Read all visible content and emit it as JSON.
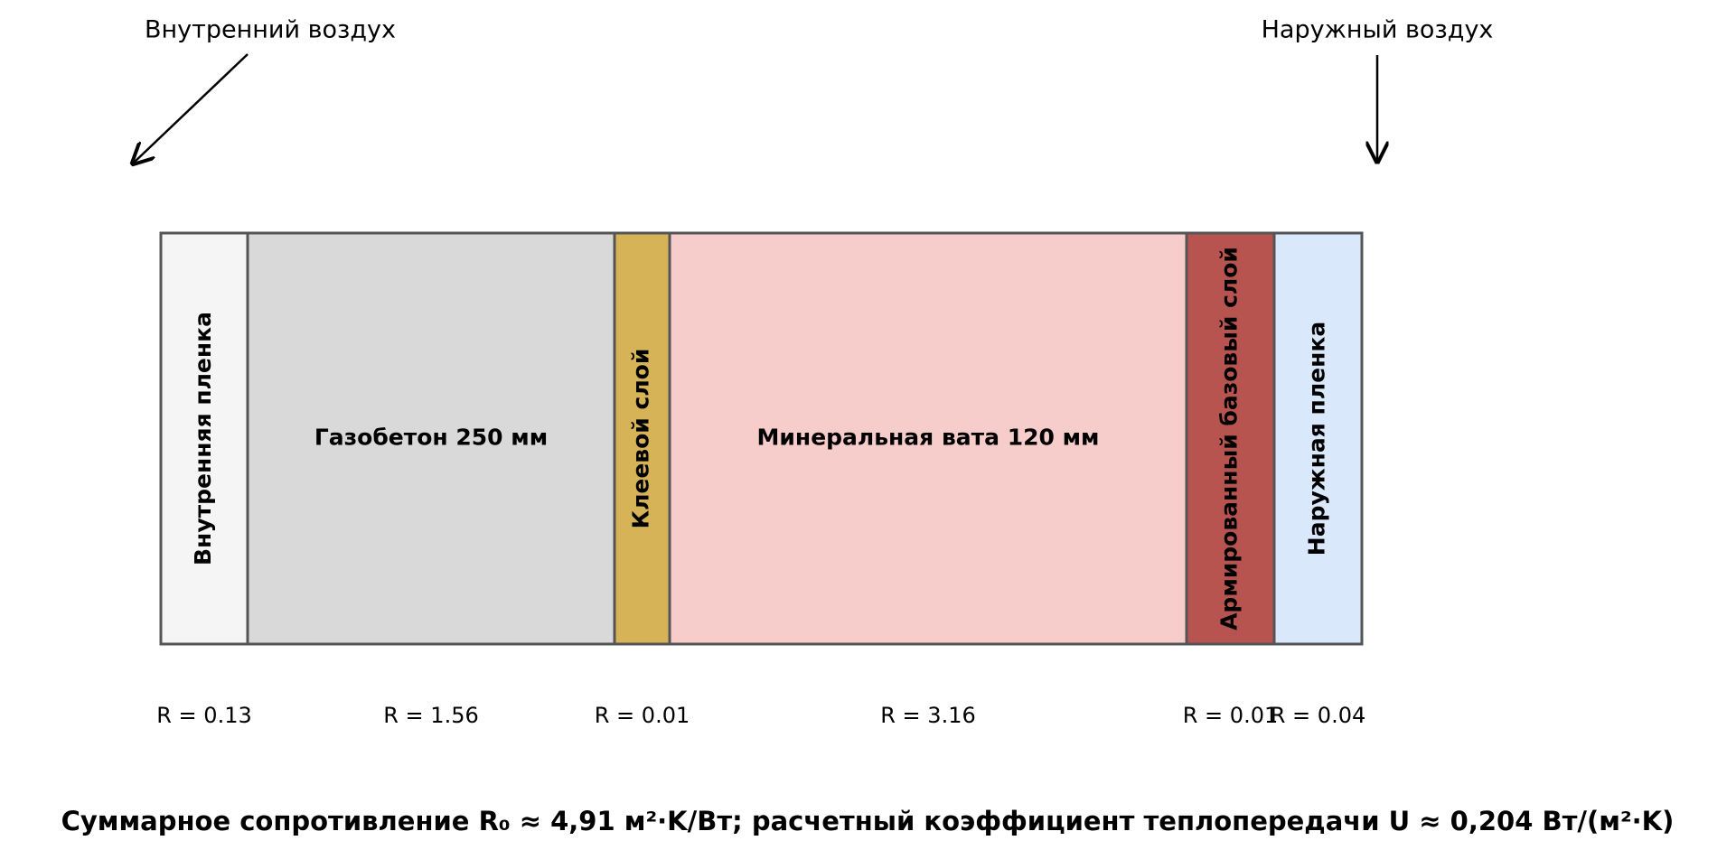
{
  "labels": {
    "inside": "Внутренний воздух",
    "outside": "Наружный воздух"
  },
  "layers": [
    {
      "label": "Внутренняя пленка",
      "resistance": "R = 0.13"
    },
    {
      "label": "Газобетон 250 мм",
      "resistance": "R = 1.56"
    },
    {
      "label": "Клеевой слой",
      "resistance": "R = 0.01"
    },
    {
      "label": "Минеральная вата 120 мм",
      "resistance": "R = 3.16"
    },
    {
      "label": "Армированный базовый слой",
      "resistance": "R = 0.01"
    },
    {
      "label": "Наружная пленка",
      "resistance": "R = 0.04"
    }
  ],
  "summary": "Суммарное сопротивление R₀ ≈ 4,91 м²·K/Вт; расчетный коэффициент теплопередачи U ≈ 0,204 Вт/(м²·K)"
}
